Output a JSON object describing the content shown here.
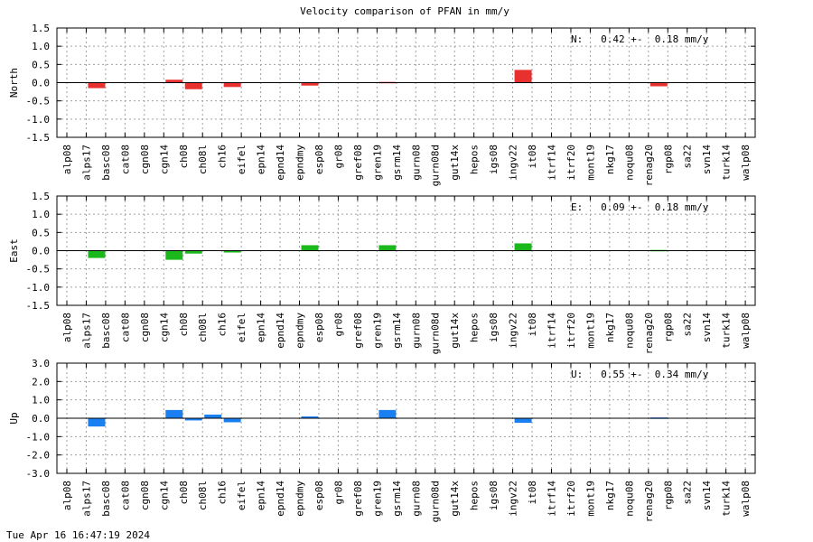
{
  "title": "Velocity comparison of PFAN in mm/y",
  "timestamp": "Tue Apr 16 16:47:19 2024",
  "chart_data": {
    "type": "bar",
    "categories": [
      "alp08",
      "alps17",
      "basc08",
      "cat08",
      "cgn08",
      "cgn14",
      "ch08",
      "ch08l",
      "ch16",
      "eifel",
      "epn14",
      "epnd14",
      "epndmy",
      "esp08",
      "gr08",
      "gref08",
      "gren19",
      "gsrm14",
      "gurn08",
      "gurn08d",
      "gut14x",
      "hepos",
      "igs08",
      "ingv22",
      "it08",
      "itrf14",
      "itrf20",
      "mont19",
      "nkg17",
      "noqu08",
      "renag20",
      "rgp08",
      "sa22",
      "svn14",
      "turk14",
      "walp08"
    ],
    "panels": [
      {
        "ylabel": "North",
        "color": "#e8302e",
        "ylim": [
          -1.5,
          1.5
        ],
        "yticks": [
          1.5,
          1.0,
          0.5,
          0.0,
          -0.5,
          -1.0,
          -1.5
        ],
        "ytick_labels": [
          "1.5",
          "1.0",
          "0.5",
          "0.0",
          "-0.5",
          "-1.0",
          "-1.5"
        ],
        "annotation": "N:   0.42 +-  0.18 mm/y",
        "values": [
          0,
          -0.15,
          0,
          0,
          0,
          0.08,
          -0.18,
          0,
          -0.12,
          0,
          0,
          0,
          -0.08,
          0,
          0,
          0,
          0.02,
          0,
          0,
          0,
          0,
          0,
          0,
          0.35,
          0,
          0,
          0,
          0,
          0,
          0,
          -0.1,
          0,
          0,
          0,
          0,
          0
        ]
      },
      {
        "ylabel": "East",
        "color": "#1ab81a",
        "ylim": [
          -1.5,
          1.5
        ],
        "yticks": [
          1.5,
          1.0,
          0.5,
          0.0,
          -0.5,
          -1.0,
          -1.5
        ],
        "ytick_labels": [
          "1.5",
          "1.0",
          "0.5",
          "0.0",
          "-0.5",
          "-1.0",
          "-1.5"
        ],
        "annotation": "E:   0.09 +-  0.18 mm/y",
        "values": [
          0,
          -0.2,
          0,
          0,
          0,
          -0.25,
          -0.08,
          0,
          -0.05,
          0,
          0,
          0,
          0.15,
          0,
          0,
          0,
          0.15,
          0,
          0,
          0,
          0,
          0,
          0,
          0.2,
          0,
          0,
          0,
          0,
          0,
          0,
          0.02,
          0,
          0,
          0,
          0,
          0
        ]
      },
      {
        "ylabel": "Up",
        "color": "#1a7ff0",
        "ylim": [
          -3.0,
          3.0
        ],
        "yticks": [
          3.0,
          2.0,
          1.0,
          0.0,
          -1.0,
          -2.0,
          -3.0
        ],
        "ytick_labels": [
          "3.0",
          "2.0",
          "1.0",
          "0.0",
          "-1.0",
          "-2.0",
          "-3.0"
        ],
        "annotation": "U:   0.55 +-  0.34 mm/y",
        "values": [
          0,
          -0.45,
          0,
          0,
          0,
          0.45,
          -0.12,
          0.2,
          -0.22,
          0,
          0,
          0,
          0.1,
          0,
          0,
          0,
          0.45,
          0,
          0,
          0,
          0,
          0,
          0,
          -0.25,
          0,
          0,
          0,
          0,
          0,
          0,
          0.04,
          0,
          0,
          0,
          0,
          0
        ]
      }
    ],
    "grid": true
  }
}
